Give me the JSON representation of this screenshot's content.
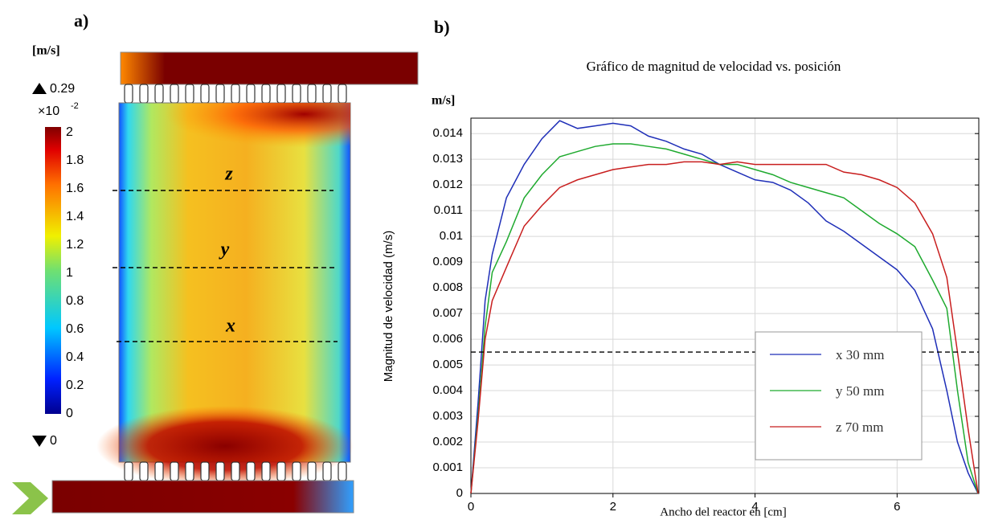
{
  "panel_a": {
    "label": "a)",
    "unit": "[m/s]",
    "max_label": "0.29",
    "min_label": "0",
    "multiplier": "×10",
    "exponent": "-2",
    "colorbar_ticks": [
      "2",
      "1.8",
      "1.6",
      "1.4",
      "1.2",
      "1",
      "0.8",
      "0.6",
      "0.4",
      "0.2",
      "0"
    ],
    "line_labels": [
      "z",
      "y",
      "x"
    ]
  },
  "panel_b": {
    "label": "b)",
    "unit": "m/s]"
  },
  "chart_data": {
    "type": "line",
    "title": "Gráfico de magnitud de velocidad vs. posición",
    "x_label": "Ancho del reactor en [cm]",
    "y_label": "Magnitud de velocidad (m/s)",
    "x": [
      0,
      0.1,
      0.2,
      0.3,
      0.5,
      0.75,
      1,
      1.25,
      1.5,
      1.75,
      2,
      2.25,
      2.5,
      2.75,
      3,
      3.25,
      3.5,
      3.75,
      4,
      4.25,
      4.5,
      4.75,
      5,
      5.25,
      5.5,
      5.75,
      6,
      6.25,
      6.5,
      6.7,
      6.85,
      7,
      7.14
    ],
    "series": [
      {
        "name": "x 30 mm",
        "color": "#1f2fb8",
        "values": [
          0,
          0.0035,
          0.0075,
          0.0093,
          0.0115,
          0.0128,
          0.0138,
          0.0145,
          0.0142,
          0.0143,
          0.0144,
          0.0143,
          0.0139,
          0.0137,
          0.0134,
          0.0132,
          0.0128,
          0.0125,
          0.0122,
          0.0121,
          0.0118,
          0.0113,
          0.0106,
          0.0102,
          0.0097,
          0.0092,
          0.0087,
          0.0079,
          0.0064,
          0.004,
          0.002,
          0.0008,
          0
        ]
      },
      {
        "name": "y 50 mm",
        "color": "#1faa2f",
        "values": [
          0,
          0.003,
          0.0065,
          0.0086,
          0.0098,
          0.0115,
          0.0124,
          0.0131,
          0.0133,
          0.0135,
          0.0136,
          0.0136,
          0.0135,
          0.0134,
          0.0132,
          0.013,
          0.0128,
          0.0128,
          0.0126,
          0.0124,
          0.0121,
          0.0119,
          0.0117,
          0.0115,
          0.011,
          0.0105,
          0.0101,
          0.0096,
          0.0083,
          0.0072,
          0.004,
          0.0012,
          0
        ]
      },
      {
        "name": "z 70 mm",
        "color": "#c81e1e",
        "values": [
          0,
          0.0028,
          0.006,
          0.0075,
          0.0088,
          0.0104,
          0.0112,
          0.0119,
          0.0122,
          0.0124,
          0.0126,
          0.0127,
          0.0128,
          0.0128,
          0.0129,
          0.0129,
          0.0128,
          0.0129,
          0.0128,
          0.0128,
          0.0128,
          0.0128,
          0.0128,
          0.0125,
          0.0124,
          0.0122,
          0.0119,
          0.0113,
          0.0101,
          0.0084,
          0.0055,
          0.0025,
          0
        ]
      }
    ],
    "reference_line": 0.0055,
    "xlim": [
      0,
      7.15
    ],
    "ylim": [
      0,
      0.0146
    ],
    "xticks": [
      0,
      2,
      4,
      6
    ],
    "yticks": [
      0,
      0.001,
      0.002,
      0.003,
      0.004,
      0.005,
      0.006,
      0.007,
      0.008,
      0.009,
      0.01,
      0.011,
      0.012,
      0.013,
      0.014
    ],
    "grid": true,
    "legend": "lower right"
  }
}
